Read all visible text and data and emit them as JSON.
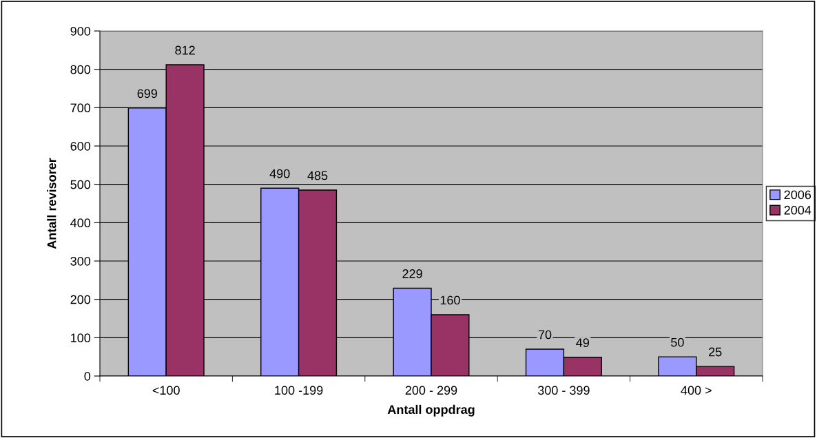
{
  "chart_data": {
    "type": "bar",
    "xlabel": "Antall oppdrag",
    "ylabel": "Antall revisorer",
    "categories": [
      "<100",
      "100 -199",
      "200 - 299",
      "300 - 399",
      "400 >"
    ],
    "series": [
      {
        "name": "2006",
        "color": "#9999ff",
        "values": [
          699,
          490,
          229,
          70,
          50
        ]
      },
      {
        "name": "2004",
        "color": "#993366",
        "values": [
          812,
          485,
          160,
          49,
          25
        ]
      }
    ],
    "ylim": [
      0,
      900
    ],
    "yticks": [
      0,
      100,
      200,
      300,
      400,
      500,
      600,
      700,
      800,
      900
    ],
    "grid": "y",
    "legend": "right",
    "data_labels": true
  }
}
